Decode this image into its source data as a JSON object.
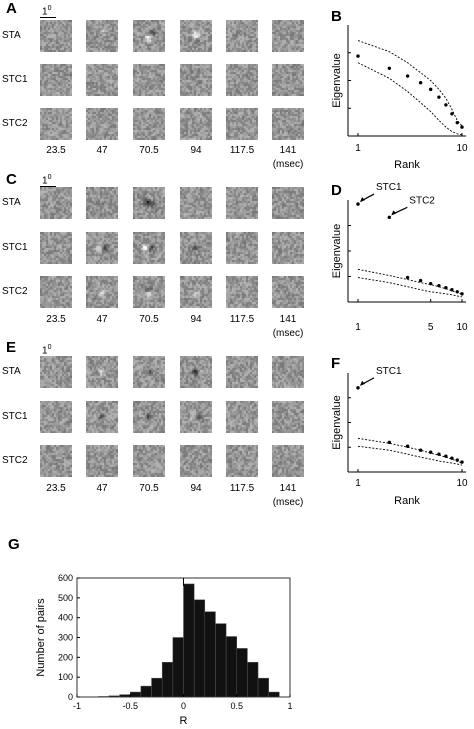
{
  "scalebar_label": "1",
  "scalebar_sup": "0",
  "time_labels": [
    "23.5",
    "47",
    "70.5",
    "94",
    "117.5",
    "141"
  ],
  "time_unit": "(msec)",
  "filter_panels": [
    {
      "letter": "A",
      "rows": [
        {
          "label": "STA",
          "blobs": [
            [],
            [
              [
                0.15,
                -0.35,
                0.45
              ]
            ],
            [
              [
                -0.05,
                0.15,
                0.9
              ],
              [
                0.25,
                -0.2,
                -0.6
              ]
            ],
            [
              [
                0.0,
                -0.05,
                1.0
              ],
              [
                0.0,
                0.35,
                -0.4
              ]
            ],
            [],
            []
          ]
        },
        {
          "label": "STC1",
          "blobs": [
            [],
            [],
            [],
            [],
            [],
            []
          ]
        },
        {
          "label": "STC2",
          "blobs": [
            [],
            [],
            [],
            [],
            [],
            []
          ]
        }
      ]
    },
    {
      "letter": "C",
      "rows": [
        {
          "label": "STA",
          "blobs": [
            [],
            [
              [
                0.0,
                0.1,
                -0.4
              ]
            ],
            [
              [
                -0.1,
                0.0,
                -1.0
              ],
              [
                0.25,
                0.1,
                -0.5
              ]
            ],
            [],
            [],
            []
          ]
        },
        {
          "label": "STC1",
          "blobs": [
            [],
            [
              [
                -0.15,
                0.0,
                0.8
              ],
              [
                0.2,
                0.0,
                -0.6
              ]
            ],
            [
              [
                -0.2,
                0.0,
                1.0
              ],
              [
                0.15,
                0.0,
                -0.8
              ]
            ],
            [
              [
                -0.05,
                0.0,
                -0.6
              ]
            ],
            [],
            []
          ]
        },
        {
          "label": "STC2",
          "blobs": [
            [],
            [
              [
                0.0,
                0.1,
                0.6
              ]
            ],
            [
              [
                0.0,
                -0.1,
                -0.5
              ],
              [
                0.0,
                0.15,
                0.9
              ]
            ],
            [
              [
                0.0,
                0.15,
                0.4
              ]
            ],
            [],
            []
          ]
        }
      ]
    },
    {
      "letter": "E",
      "rows": [
        {
          "label": "STA",
          "blobs": [
            [],
            [
              [
                0.0,
                0.0,
                0.55
              ]
            ],
            [
              [
                0.0,
                0.0,
                -0.5
              ]
            ],
            [
              [
                0.0,
                0.0,
                -1.0
              ],
              [
                0.3,
                0.0,
                0.3
              ]
            ],
            [],
            []
          ]
        },
        {
          "label": "STC1",
          "blobs": [
            [],
            [
              [
                0.0,
                0.0,
                -0.5
              ]
            ],
            [
              [
                0.0,
                0.0,
                -0.7
              ]
            ],
            [
              [
                -0.15,
                0.0,
                0.6
              ],
              [
                0.15,
                0.0,
                -0.5
              ]
            ],
            [],
            []
          ]
        },
        {
          "label": "STC2",
          "blobs": [
            [],
            [],
            [],
            [],
            [],
            []
          ]
        }
      ]
    }
  ],
  "chart_data": [
    {
      "panel": "B",
      "type": "scatter",
      "title": "",
      "xlabel": "Rank",
      "ylabel": "Eigenvalue",
      "xticks": [
        "1",
        "10"
      ],
      "xlim": [
        1,
        10
      ],
      "ylim": [
        0,
        1
      ],
      "series": [
        {
          "x": [
            1,
            2,
            3,
            4,
            5,
            6,
            7,
            8,
            9,
            10
          ],
          "y": [
            0.72,
            0.61,
            0.54,
            0.48,
            0.42,
            0.35,
            0.28,
            0.2,
            0.12,
            0.08
          ]
        }
      ],
      "bounds": {
        "upper": [
          0.86,
          0.76,
          0.66,
          0.57,
          0.5,
          0.42,
          0.34,
          0.24,
          0.14,
          0.09
        ],
        "lower": [
          0.66,
          0.52,
          0.4,
          0.3,
          0.22,
          0.14,
          0.08,
          0.04,
          0.02,
          0.01
        ]
      }
    },
    {
      "panel": "D",
      "type": "scatter",
      "title": "",
      "xlabel": "",
      "ylabel": "Eigenvalue",
      "xticks": [
        "1",
        "5",
        "10"
      ],
      "xlim": [
        1,
        10
      ],
      "ylim": [
        0,
        1
      ],
      "annotations": [
        "STC1",
        "STC2"
      ],
      "series": [
        {
          "x": [
            1,
            2,
            3,
            4,
            5,
            6,
            7,
            8,
            9,
            10
          ],
          "y": [
            0.96,
            0.83,
            0.24,
            0.21,
            0.18,
            0.16,
            0.14,
            0.12,
            0.1,
            0.08
          ]
        }
      ],
      "bounds": {
        "upper": [
          0.32,
          0.26,
          0.22,
          0.19,
          0.17,
          0.15,
          0.13,
          0.11,
          0.09,
          0.08
        ],
        "lower": [
          0.24,
          0.19,
          0.15,
          0.12,
          0.1,
          0.09,
          0.08,
          0.07,
          0.06,
          0.05
        ]
      }
    },
    {
      "panel": "F",
      "type": "scatter",
      "title": "",
      "xlabel": "Rank",
      "ylabel": "Eigenvalue",
      "xticks": [
        "1",
        "10"
      ],
      "xlim": [
        1,
        10
      ],
      "ylim": [
        0,
        1
      ],
      "annotations": [
        "STC1"
      ],
      "series": [
        {
          "x": [
            1,
            2,
            3,
            4,
            5,
            6,
            7,
            8,
            9,
            10
          ],
          "y": [
            0.85,
            0.3,
            0.26,
            0.22,
            0.2,
            0.18,
            0.16,
            0.14,
            0.12,
            0.1
          ]
        }
      ],
      "bounds": {
        "upper": [
          0.34,
          0.29,
          0.25,
          0.22,
          0.19,
          0.17,
          0.15,
          0.13,
          0.11,
          0.09
        ],
        "lower": [
          0.26,
          0.22,
          0.18,
          0.15,
          0.13,
          0.11,
          0.1,
          0.09,
          0.08,
          0.07
        ]
      }
    },
    {
      "panel": "G",
      "type": "bar",
      "title": "",
      "xlabel": "R",
      "ylabel": "Number of pairs",
      "xlim": [
        -1,
        1
      ],
      "ylim": [
        0,
        600
      ],
      "xticks": [
        "-1",
        "-0.5",
        "0",
        "0.5",
        "1"
      ],
      "yticks": [
        "0",
        "100",
        "200",
        "300",
        "400",
        "500",
        "600"
      ],
      "bin_width": 0.1,
      "bin_left_edges": [
        -0.8,
        -0.7,
        -0.6,
        -0.5,
        -0.4,
        -0.3,
        -0.2,
        -0.1,
        0.0,
        0.1,
        0.2,
        0.3,
        0.4,
        0.5,
        0.6,
        0.7,
        0.8
      ],
      "values": [
        3,
        6,
        12,
        25,
        55,
        95,
        175,
        300,
        570,
        490,
        430,
        370,
        305,
        245,
        175,
        95,
        25
      ],
      "median_marker": 0.0
    }
  ]
}
